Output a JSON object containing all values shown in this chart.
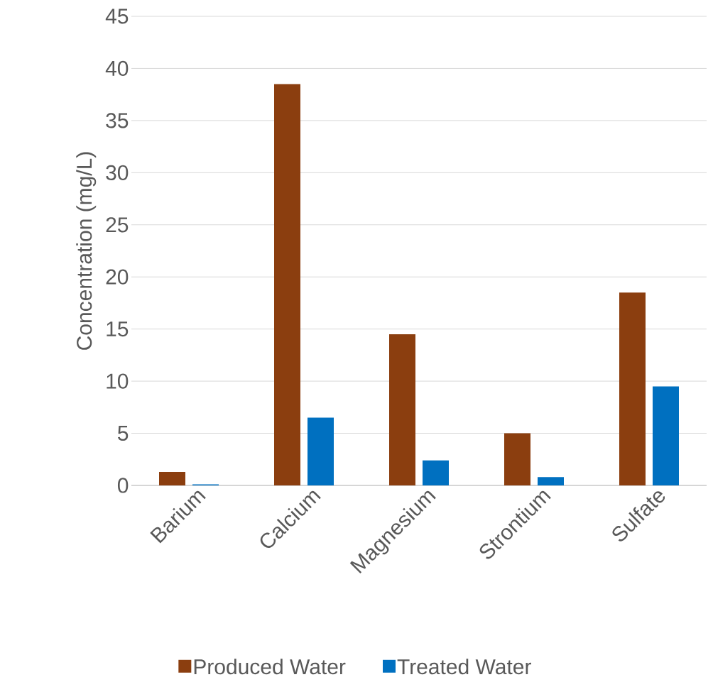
{
  "chart_data": {
    "type": "bar",
    "ylabel": "Concentration (mg/L)",
    "categories": [
      "Barium",
      "Calcium",
      "Magnesium",
      "Strontium",
      "Sulfate"
    ],
    "series": [
      {
        "name": "Produced Water",
        "color": "#8b3e0f",
        "values": [
          1.3,
          38.5,
          14.5,
          5.0,
          18.5
        ]
      },
      {
        "name": "Treated Water",
        "color": "#0070c0",
        "values": [
          0.1,
          6.5,
          2.4,
          0.8,
          9.5
        ]
      }
    ],
    "ylim": [
      0,
      45
    ],
    "yticks": [
      0,
      5,
      10,
      15,
      20,
      25,
      30,
      35,
      40,
      45
    ],
    "grid": "y",
    "legend": "bottom"
  }
}
